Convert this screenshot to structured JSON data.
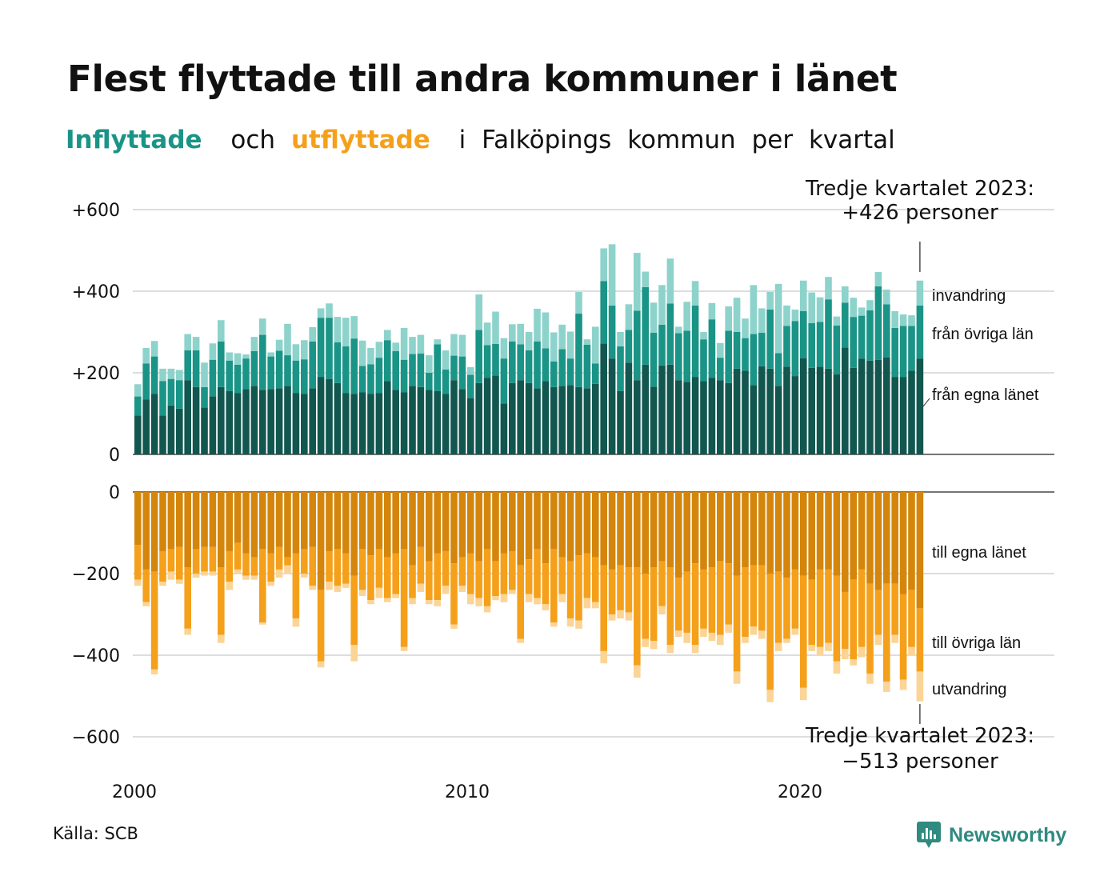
{
  "title": "Flest flyttade till andra kommuner i länet",
  "subtitle": {
    "in_word": "Inflyttade",
    "and_word": "och",
    "out_word": "utflyttade",
    "rest": [
      "i",
      "Falköpings",
      "kommun",
      "per",
      "kvartal"
    ]
  },
  "source": "Källa: SCB",
  "brand": "Newsworthy",
  "colors": {
    "in_own": "#12574f",
    "in_other": "#1a9486",
    "in_immig": "#8dd3cb",
    "out_own": "#d4860c",
    "out_other": "#f5a01a",
    "out_emig": "#fbd496",
    "gridline": "#dddddd",
    "brand": "#2f8a80"
  },
  "chart_data": {
    "type": "bar",
    "stacked": true,
    "frequency": "quarterly",
    "x_start": "2000 Q1",
    "x_ticks": [
      "2000",
      "2010",
      "2020"
    ],
    "upper_panel": {
      "y_ticks": [
        "+600",
        "+400",
        "+200",
        "0"
      ],
      "ylim": [
        0,
        620
      ],
      "series": [
        {
          "name": "från egna länet",
          "values": [
            95,
            135,
            148,
            95,
            120,
            112,
            182,
            165,
            115,
            142,
            165,
            155,
            150,
            160,
            168,
            158,
            160,
            162,
            168,
            150,
            148,
            162,
            190,
            185,
            175,
            150,
            148,
            152,
            148,
            150,
            180,
            158,
            152,
            168,
            165,
            158,
            155,
            148,
            182,
            160,
            138,
            175,
            188,
            193,
            125,
            175,
            182,
            175,
            162,
            180,
            165,
            168,
            170,
            165,
            162,
            173,
            272,
            235,
            155,
            225,
            182,
            220,
            166,
            218,
            220,
            182,
            178,
            190,
            180,
            188,
            182,
            175,
            210,
            205,
            170,
            216,
            210,
            168,
            215,
            192,
            236,
            212,
            215,
            210,
            196,
            262,
            212,
            235,
            230,
            232,
            238,
            190,
            190,
            205,
            235
          ]
        },
        {
          "name": "från övriga län",
          "values": [
            47,
            88,
            92,
            85,
            65,
            70,
            73,
            90,
            50,
            90,
            112,
            75,
            70,
            75,
            85,
            135,
            80,
            92,
            75,
            80,
            85,
            115,
            145,
            150,
            100,
            115,
            136,
            65,
            73,
            87,
            100,
            95,
            80,
            78,
            82,
            42,
            115,
            60,
            60,
            80,
            57,
            130,
            80,
            78,
            110,
            102,
            88,
            80,
            115,
            80,
            63,
            90,
            65,
            180,
            107,
            50,
            153,
            130,
            110,
            80,
            170,
            190,
            132,
            100,
            150,
            115,
            125,
            175,
            102,
            143,
            55,
            128,
            90,
            80,
            125,
            82,
            145,
            80,
            100,
            135,
            115,
            110,
            110,
            170,
            120,
            110,
            125,
            105,
            123,
            180,
            130,
            120,
            125,
            110,
            130
          ]
        },
        {
          "name": "invandring",
          "values": [
            30,
            38,
            38,
            30,
            25,
            25,
            40,
            33,
            60,
            40,
            52,
            20,
            28,
            10,
            35,
            40,
            10,
            27,
            77,
            40,
            47,
            35,
            23,
            35,
            62,
            70,
            55,
            62,
            40,
            39,
            25,
            21,
            78,
            42,
            46,
            43,
            12,
            47,
            53,
            53,
            19,
            87,
            55,
            79,
            50,
            42,
            50,
            45,
            80,
            88,
            71,
            60,
            66,
            53,
            13,
            90,
            80,
            150,
            35,
            63,
            142,
            38,
            74,
            97,
            110,
            16,
            71,
            60,
            18,
            40,
            36,
            60,
            84,
            48,
            120,
            60,
            43,
            170,
            50,
            28,
            75,
            75,
            60,
            55,
            22,
            40,
            47,
            20,
            25,
            35,
            36,
            41,
            28,
            26,
            61
          ]
        }
      ],
      "annotation": {
        "line1": "Tredje kvartalet 2023:",
        "line2": "+426 personer"
      },
      "labels": [
        "invandring",
        "från övriga län",
        "från egna länet"
      ]
    },
    "lower_panel": {
      "y_ticks": [
        "0",
        "−200",
        "−400",
        "−600"
      ],
      "ylim": [
        -620,
        0
      ],
      "series": [
        {
          "name": "till egna länet",
          "values": [
            -130,
            -190,
            -195,
            -145,
            -140,
            -135,
            -185,
            -140,
            -135,
            -135,
            -185,
            -145,
            -125,
            -150,
            -160,
            -140,
            -150,
            -135,
            -160,
            -150,
            -140,
            -135,
            -240,
            -145,
            -140,
            -150,
            -205,
            -140,
            -155,
            -140,
            -160,
            -150,
            -140,
            -180,
            -135,
            -170,
            -150,
            -145,
            -175,
            -160,
            -150,
            -170,
            -140,
            -170,
            -150,
            -145,
            -180,
            -165,
            -140,
            -175,
            -140,
            -160,
            -170,
            -155,
            -150,
            -160,
            -180,
            -190,
            -180,
            -185,
            -185,
            -200,
            -185,
            -170,
            -185,
            -210,
            -195,
            -175,
            -190,
            -185,
            -170,
            -175,
            -205,
            -185,
            -180,
            -180,
            -200,
            -195,
            -210,
            -190,
            -205,
            -215,
            -190,
            -190,
            -205,
            -245,
            -215,
            -190,
            -225,
            -240,
            -225,
            -225,
            -250,
            -240,
            -285
          ]
        },
        {
          "name": "till övriga län",
          "values": [
            -85,
            -80,
            -240,
            -75,
            -55,
            -80,
            -150,
            -60,
            -60,
            -60,
            -165,
            -75,
            -65,
            -55,
            -45,
            -180,
            -70,
            -55,
            -20,
            -160,
            -60,
            -95,
            -175,
            -75,
            -90,
            -75,
            -170,
            -100,
            -110,
            -95,
            -100,
            -100,
            -240,
            -80,
            -90,
            -95,
            -115,
            -85,
            -150,
            -70,
            -100,
            -90,
            -140,
            -85,
            -100,
            -95,
            -180,
            -85,
            -120,
            -100,
            -180,
            -90,
            -140,
            -160,
            -110,
            -110,
            -210,
            -110,
            -110,
            -110,
            -240,
            -160,
            -180,
            -110,
            -190,
            -130,
            -150,
            -200,
            -145,
            -160,
            -180,
            -150,
            -235,
            -170,
            -150,
            -160,
            -285,
            -175,
            -150,
            -145,
            -275,
            -160,
            -190,
            -180,
            -210,
            -140,
            -195,
            -190,
            -220,
            -110,
            -240,
            -125,
            -210,
            -140,
            -155
          ]
        },
        {
          "name": "utvandring",
          "values": [
            -15,
            -10,
            -12,
            -10,
            -20,
            -10,
            -15,
            -10,
            -10,
            -10,
            -20,
            -20,
            -10,
            -10,
            -10,
            -5,
            -10,
            -20,
            -20,
            -20,
            -10,
            -10,
            -15,
            -20,
            -15,
            -10,
            -40,
            -15,
            -10,
            -25,
            -10,
            -10,
            -10,
            -15,
            -20,
            -10,
            -15,
            -20,
            -10,
            -15,
            -25,
            -20,
            -15,
            -10,
            -20,
            -10,
            -10,
            -20,
            -15,
            -15,
            -10,
            -20,
            -20,
            -20,
            -25,
            -15,
            -30,
            -15,
            -20,
            -20,
            -30,
            -20,
            -20,
            -20,
            -20,
            -15,
            -25,
            -20,
            -20,
            -20,
            -25,
            -20,
            -30,
            -15,
            -20,
            -20,
            -30,
            -20,
            -10,
            -15,
            -30,
            -15,
            -20,
            -20,
            -30,
            -25,
            -15,
            -25,
            -25,
            -25,
            -25,
            -20,
            -25,
            -20,
            -73
          ]
        }
      ],
      "annotation": {
        "line1": "Tredje kvartalet 2023:",
        "line2": "−513 personer"
      },
      "labels": [
        "till egna länet",
        "till övriga län",
        "utvandring"
      ]
    }
  }
}
